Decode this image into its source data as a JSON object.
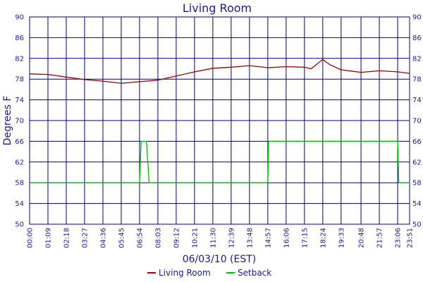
{
  "chart_data": {
    "type": "line",
    "title": "Living Room",
    "xlabel": "06/03/10 (EST)",
    "ylabel": "Degrees F",
    "ylim": [
      50,
      90
    ],
    "yticks": [
      50,
      54,
      58,
      62,
      66,
      70,
      74,
      78,
      82,
      86,
      90
    ],
    "x_tick_labels": [
      "00:00",
      "01:09",
      "02:18",
      "03:27",
      "04:36",
      "05:45",
      "06:54",
      "08:03",
      "09:12",
      "10:21",
      "11:30",
      "12:39",
      "13:48",
      "14:57",
      "16:06",
      "17:15",
      "18:24",
      "19:33",
      "20:48",
      "21:57",
      "23:06",
      "23:51"
    ],
    "grid": true,
    "legend_position": "bottom",
    "series": [
      {
        "name": "Living Room",
        "color": "#990000",
        "x": [
          "00:00",
          "01:09",
          "02:18",
          "03:27",
          "04:36",
          "05:45",
          "06:54",
          "08:03",
          "09:12",
          "10:21",
          "11:30",
          "12:39",
          "13:48",
          "14:57",
          "16:06",
          "17:15",
          "17:40",
          "18:24",
          "18:50",
          "19:33",
          "20:48",
          "21:57",
          "23:06",
          "23:51"
        ],
        "values": [
          79.0,
          78.9,
          78.4,
          77.9,
          77.6,
          77.2,
          77.5,
          77.8,
          78.6,
          79.4,
          80.1,
          80.3,
          80.6,
          80.2,
          80.4,
          80.3,
          80.0,
          81.8,
          80.8,
          79.8,
          79.3,
          79.6,
          79.4,
          79.1
        ]
      },
      {
        "name": "Setback",
        "color": "#00bb00",
        "x": [
          "00:00",
          "06:54",
          "07:00",
          "07:20",
          "07:30",
          "14:57",
          "15:00",
          "23:06",
          "23:10",
          "23:51"
        ],
        "values": [
          58,
          58,
          66,
          66,
          58,
          58,
          66,
          66,
          58,
          58
        ]
      }
    ]
  }
}
